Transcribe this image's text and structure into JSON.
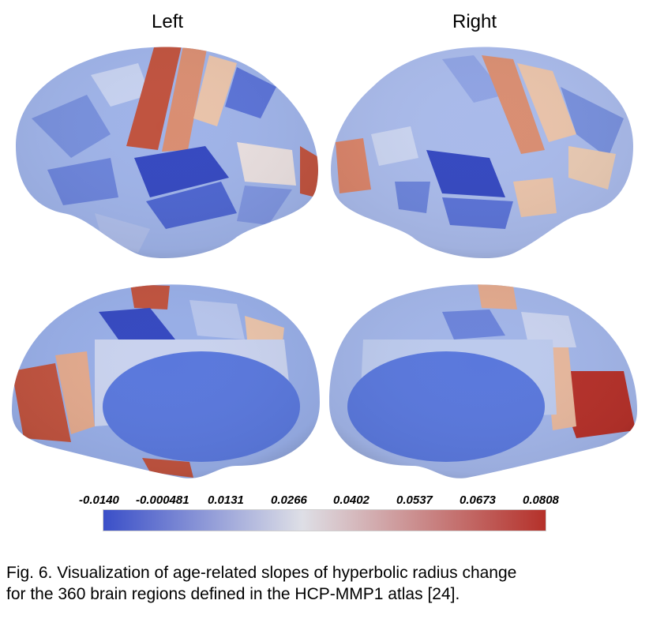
{
  "labels": {
    "left": "Left",
    "right": "Right"
  },
  "colorbar": {
    "ticks": [
      "-0.0140",
      "-0.000481",
      "0.0131",
      "0.0266",
      "0.0402",
      "0.0537",
      "0.0673",
      "0.0808"
    ],
    "min": -0.014,
    "max": 0.0808,
    "colors": {
      "low": "#3a4fc8",
      "mid": "#dedfe6",
      "high": "#b5312a"
    }
  },
  "caption": {
    "line1": "Fig. 6.   Visualization of age-related slopes of hyperbolic radius change",
    "line2": "for the 360 brain regions defined in the HCP-MMP1 atlas [24]."
  }
}
